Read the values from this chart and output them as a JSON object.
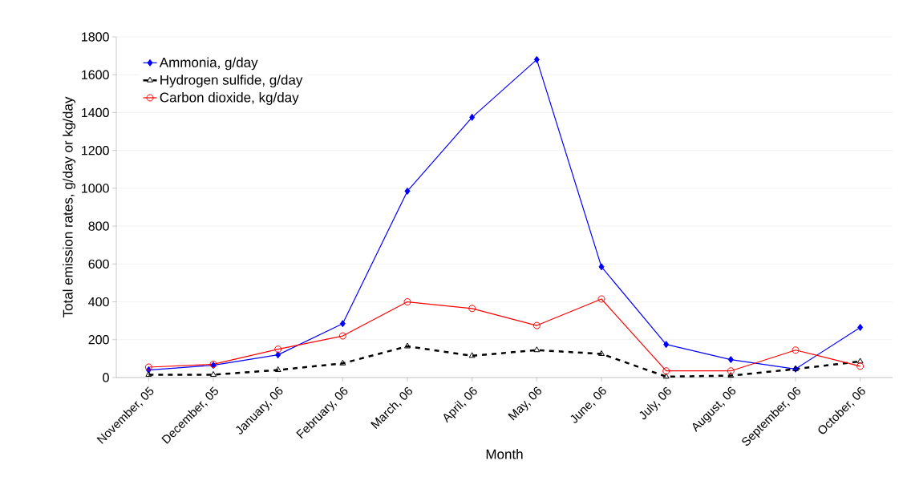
{
  "chart_data": {
    "type": "line",
    "xlabel": "Month",
    "ylabel": "Total emission rates, g/day or kg/day",
    "categories": [
      "November, 05",
      "December, 05",
      "January, 06",
      "February, 06",
      "March, 06",
      "April, 06",
      "May, 06",
      "June, 06",
      "July, 06",
      "August, 06",
      "September, 06",
      "October, 06"
    ],
    "series": [
      {
        "name": "Ammonia, g/day",
        "color": "#0000ff",
        "marker": "diamond",
        "line_style": "solid",
        "values": [
          40,
          65,
          120,
          285,
          985,
          1375,
          1680,
          585,
          175,
          95,
          45,
          265
        ]
      },
      {
        "name": "Hydrogen sulfide, g/day",
        "color": "#000000",
        "marker": "triangle",
        "line_style": "dashed",
        "values": [
          15,
          15,
          40,
          75,
          165,
          115,
          145,
          125,
          5,
          10,
          45,
          85
        ]
      },
      {
        "name": "Carbon dioxide, kg/day",
        "color": "#ff0000",
        "marker": "circle",
        "line_style": "solid",
        "values": [
          55,
          70,
          150,
          220,
          400,
          365,
          275,
          415,
          35,
          35,
          145,
          60
        ]
      }
    ],
    "ylim": [
      0,
      1800
    ],
    "yticks": [
      0,
      200,
      400,
      600,
      800,
      1000,
      1200,
      1400,
      1600,
      1800
    ],
    "grid": "y",
    "legend": "top left"
  }
}
